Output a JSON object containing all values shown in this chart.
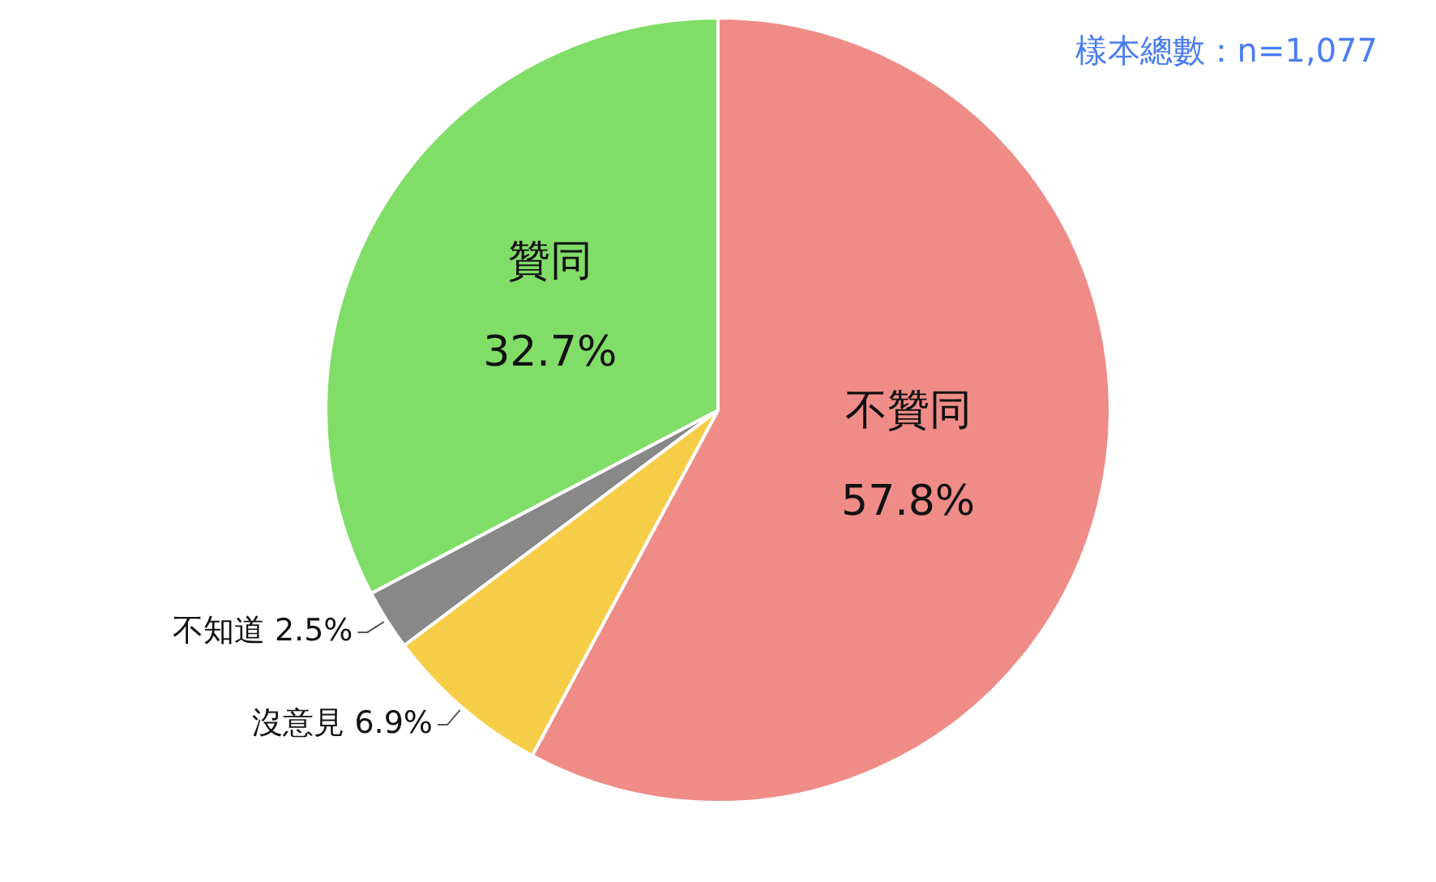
{
  "chart_data": {
    "type": "pie",
    "categories": [
      "不贊同",
      "沒意見",
      "不知道",
      "贊同"
    ],
    "values": [
      57.8,
      6.9,
      2.5,
      32.7
    ],
    "colors": [
      "#ef8c87",
      "#f6cd47",
      "#888888",
      "#80dd68"
    ],
    "value_labels": [
      "57.8%",
      "6.9%",
      "2.5%",
      "32.7%"
    ],
    "legend": false,
    "annotations": [
      "樣本總數：n=1,077"
    ]
  }
}
